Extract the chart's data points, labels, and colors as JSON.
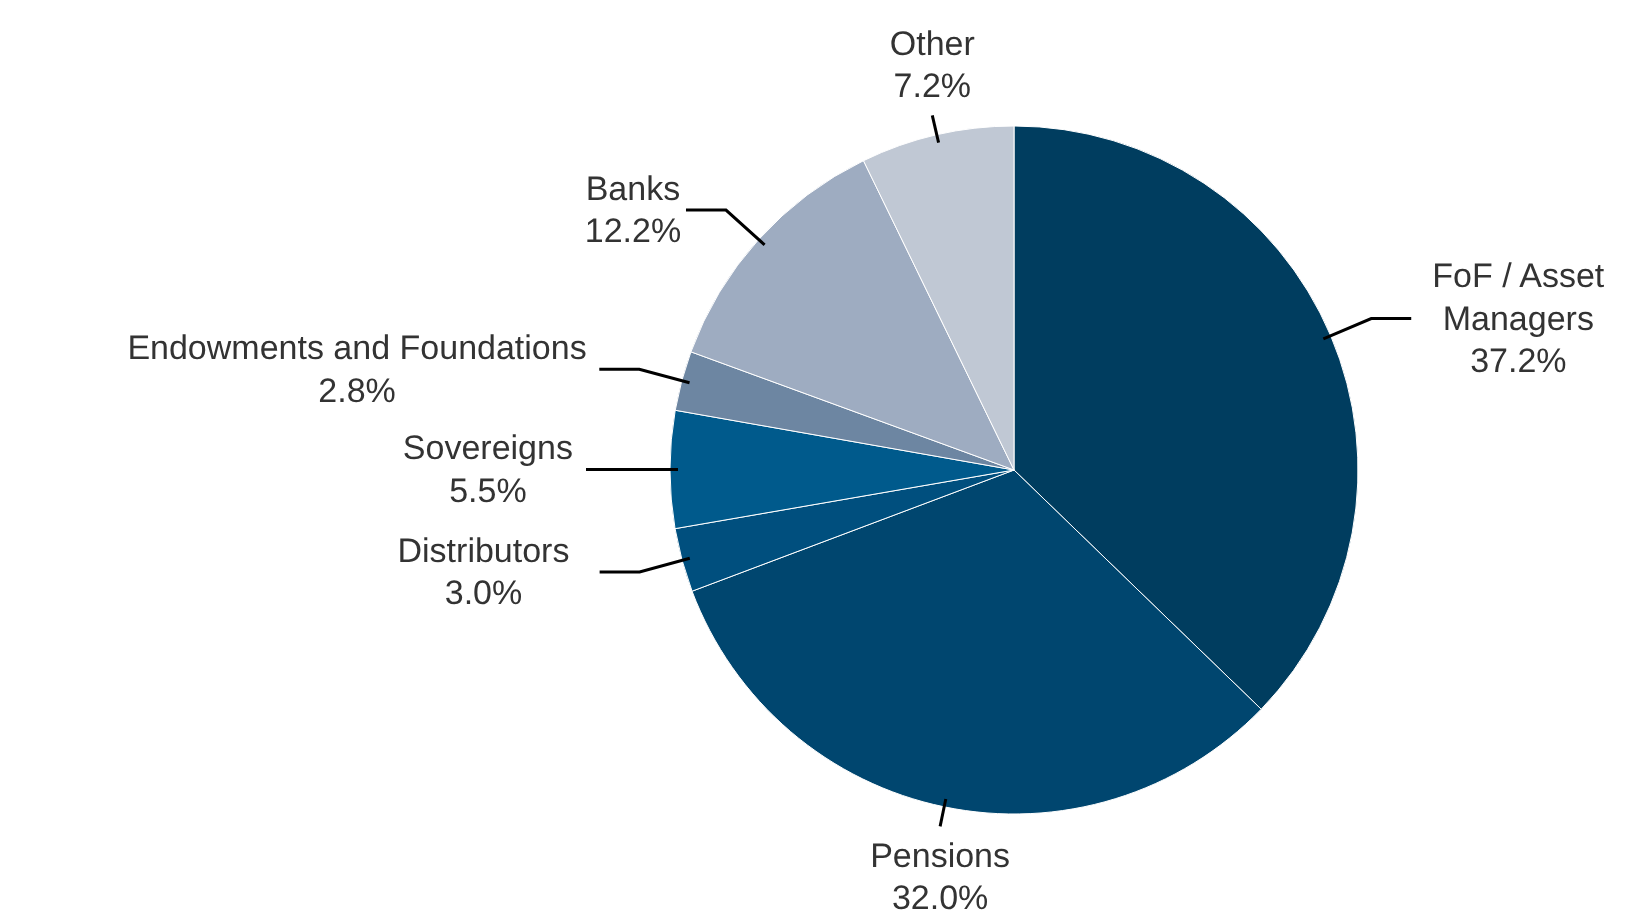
{
  "chart_data": {
    "type": "pie",
    "categories": [
      "FoF / Asset Managers",
      "Pensions",
      "Distributors",
      "Sovereigns",
      "Endowments and Foundations",
      "Banks",
      "Other"
    ],
    "values": [
      37.2,
      32.0,
      3.0,
      5.5,
      2.8,
      12.2,
      7.2
    ],
    "colors": [
      "#003d5f",
      "#00466f",
      "#004f7e",
      "#005a8c",
      "#6d86a2",
      "#9eacc1",
      "#c0c8d4"
    ],
    "value_labels": [
      "37.2%",
      "32.0%",
      "3.0%",
      "5.5%",
      "2.8%",
      "12.2%",
      "7.2%"
    ]
  }
}
